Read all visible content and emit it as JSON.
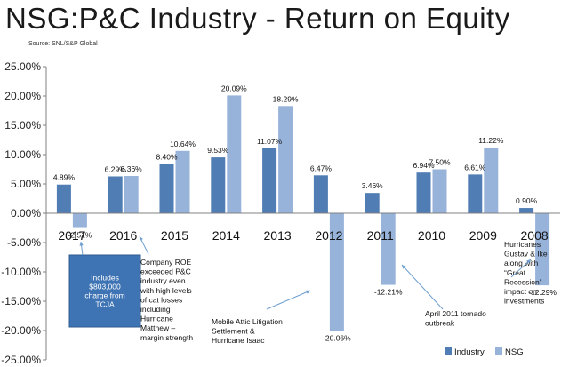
{
  "title": "NSG:P&C Industry - Return on Equity",
  "source": "Source: SNL/S&P Global",
  "colors": {
    "industry": "#4f7db4",
    "nsg": "#98b3da",
    "callout_box": "#3f74b4",
    "arrow": "#6f9fd0"
  },
  "chart_data": {
    "type": "bar",
    "categories": [
      "2017",
      "2016",
      "2015",
      "2014",
      "2013",
      "2012",
      "2011",
      "2010",
      "2009",
      "2008"
    ],
    "series": [
      {
        "name": "Industry",
        "values": [
          4.89,
          6.29,
          8.4,
          9.53,
          11.07,
          6.47,
          3.46,
          6.94,
          6.61,
          0.9
        ]
      },
      {
        "name": "NSG",
        "values": [
          -2.51,
          6.36,
          10.64,
          20.09,
          18.29,
          -20.06,
          -12.21,
          7.5,
          11.22,
          -12.29
        ]
      }
    ],
    "data_labels": {
      "Industry": [
        "4.89%",
        "6.29%",
        "8.40%",
        "9.53%",
        "11.07%",
        "6.47%",
        "3.46%",
        "6.94%",
        "6.61%",
        "0.90%"
      ],
      "NSG": [
        "-2.51%",
        "6.36%",
        "10.64%",
        "20.09%",
        "18.29%",
        "-20.06%",
        "-12.21%",
        "7.50%",
        "11.22%",
        "-12.29%"
      ]
    },
    "ylim": [
      -25,
      25
    ],
    "yticks": [
      25,
      20,
      15,
      10,
      5,
      0,
      -5,
      -10,
      -15,
      -20,
      -25
    ],
    "ytick_labels": [
      "25.00%",
      "20.00%",
      "15.00%",
      "10.00%",
      "5.00%",
      "0.00%",
      "-5.00%",
      "-10.00%",
      "-15.00%",
      "-20.00%",
      "-25.00%"
    ],
    "grid": false,
    "legend": "bottom-right",
    "annotations": [
      {
        "category": "2017",
        "lines": [
          "Includes",
          "$803,000",
          "charge from",
          "TCJA"
        ],
        "boxed": true
      },
      {
        "category": "2016",
        "lines": [
          "Company ROE",
          "exceeded P&C",
          "industry even",
          "with high levels",
          "of cat losses",
          "including",
          "Hurricane",
          "Matthew –",
          "margin strength"
        ],
        "boxed": false
      },
      {
        "category": "2012",
        "lines": [
          "Mobile Attic Litigation",
          "Settlement  &",
          "Hurricane Isaac"
        ],
        "boxed": false
      },
      {
        "category": "2011",
        "lines": [
          "April 2011 tornado",
          "outbreak"
        ],
        "boxed": false
      },
      {
        "category": "2008",
        "lines": [
          "Hurricanes",
          "Gustav & Ike",
          "along with",
          "“Great",
          "Recession”",
          "impact on",
          "investments"
        ],
        "boxed": false
      }
    ]
  }
}
